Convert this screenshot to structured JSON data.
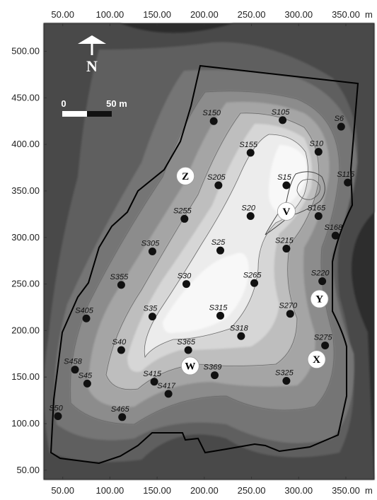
{
  "x_axis": {
    "ticks": [
      "50.00",
      "100.00",
      "150.00",
      "200.00",
      "250.00",
      "300.00",
      "350.00"
    ],
    "unit": "m",
    "range": [
      30,
      380
    ]
  },
  "y_axis": {
    "ticks": [
      "50.00",
      "100.00",
      "150.00",
      "200.00",
      "250.00",
      "300.00",
      "350.00",
      "400.00",
      "450.00",
      "500.00"
    ],
    "range": [
      40,
      530
    ]
  },
  "north_arrow": {
    "label": "N"
  },
  "scale_bar": {
    "start_label": "0",
    "end_label": "50 m"
  },
  "colors": {
    "background": "#2e2e2e",
    "boundary": "#000000",
    "point": "#111111"
  },
  "stations": [
    {
      "id": "S150",
      "x": 210,
      "y": 425
    },
    {
      "id": "S105",
      "x": 283,
      "y": 426
    },
    {
      "id": "S6",
      "x": 345,
      "y": 419
    },
    {
      "id": "S155",
      "x": 249,
      "y": 391
    },
    {
      "id": "S10",
      "x": 321,
      "y": 392
    },
    {
      "id": "S205",
      "x": 215,
      "y": 356
    },
    {
      "id": "S15",
      "x": 287,
      "y": 356
    },
    {
      "id": "S115",
      "x": 352,
      "y": 359
    },
    {
      "id": "S255",
      "x": 179,
      "y": 320
    },
    {
      "id": "S20",
      "x": 249,
      "y": 323
    },
    {
      "id": "S165",
      "x": 321,
      "y": 323
    },
    {
      "id": "S305",
      "x": 145,
      "y": 285
    },
    {
      "id": "S25",
      "x": 217,
      "y": 286
    },
    {
      "id": "S215",
      "x": 287,
      "y": 288
    },
    {
      "id": "S168",
      "x": 339,
      "y": 302
    },
    {
      "id": "S355",
      "x": 112,
      "y": 249
    },
    {
      "id": "S30",
      "x": 181,
      "y": 250
    },
    {
      "id": "S265",
      "x": 253,
      "y": 251
    },
    {
      "id": "S220",
      "x": 325,
      "y": 253
    },
    {
      "id": "S405",
      "x": 75,
      "y": 213
    },
    {
      "id": "S35",
      "x": 145,
      "y": 215
    },
    {
      "id": "S315",
      "x": 217,
      "y": 216
    },
    {
      "id": "S270",
      "x": 291,
      "y": 218
    },
    {
      "id": "S318",
      "x": 239,
      "y": 194
    },
    {
      "id": "S40",
      "x": 112,
      "y": 179
    },
    {
      "id": "S365",
      "x": 183,
      "y": 179
    },
    {
      "id": "S275",
      "x": 328,
      "y": 184
    },
    {
      "id": "S458",
      "x": 63,
      "y": 158
    },
    {
      "id": "S45",
      "x": 76,
      "y": 143
    },
    {
      "id": "S415",
      "x": 147,
      "y": 145
    },
    {
      "id": "S369",
      "x": 211,
      "y": 152
    },
    {
      "id": "S325",
      "x": 287,
      "y": 146
    },
    {
      "id": "S417",
      "x": 162,
      "y": 132
    },
    {
      "id": "S50",
      "x": 45,
      "y": 108
    },
    {
      "id": "S465",
      "x": 113,
      "y": 107
    }
  ],
  "zones": [
    {
      "id": "Z",
      "x": 180,
      "y": 366
    },
    {
      "id": "V",
      "x": 287,
      "y": 328
    },
    {
      "id": "Y",
      "x": 322,
      "y": 234
    },
    {
      "id": "X",
      "x": 319,
      "y": 169
    },
    {
      "id": "W",
      "x": 185,
      "y": 162
    }
  ]
}
